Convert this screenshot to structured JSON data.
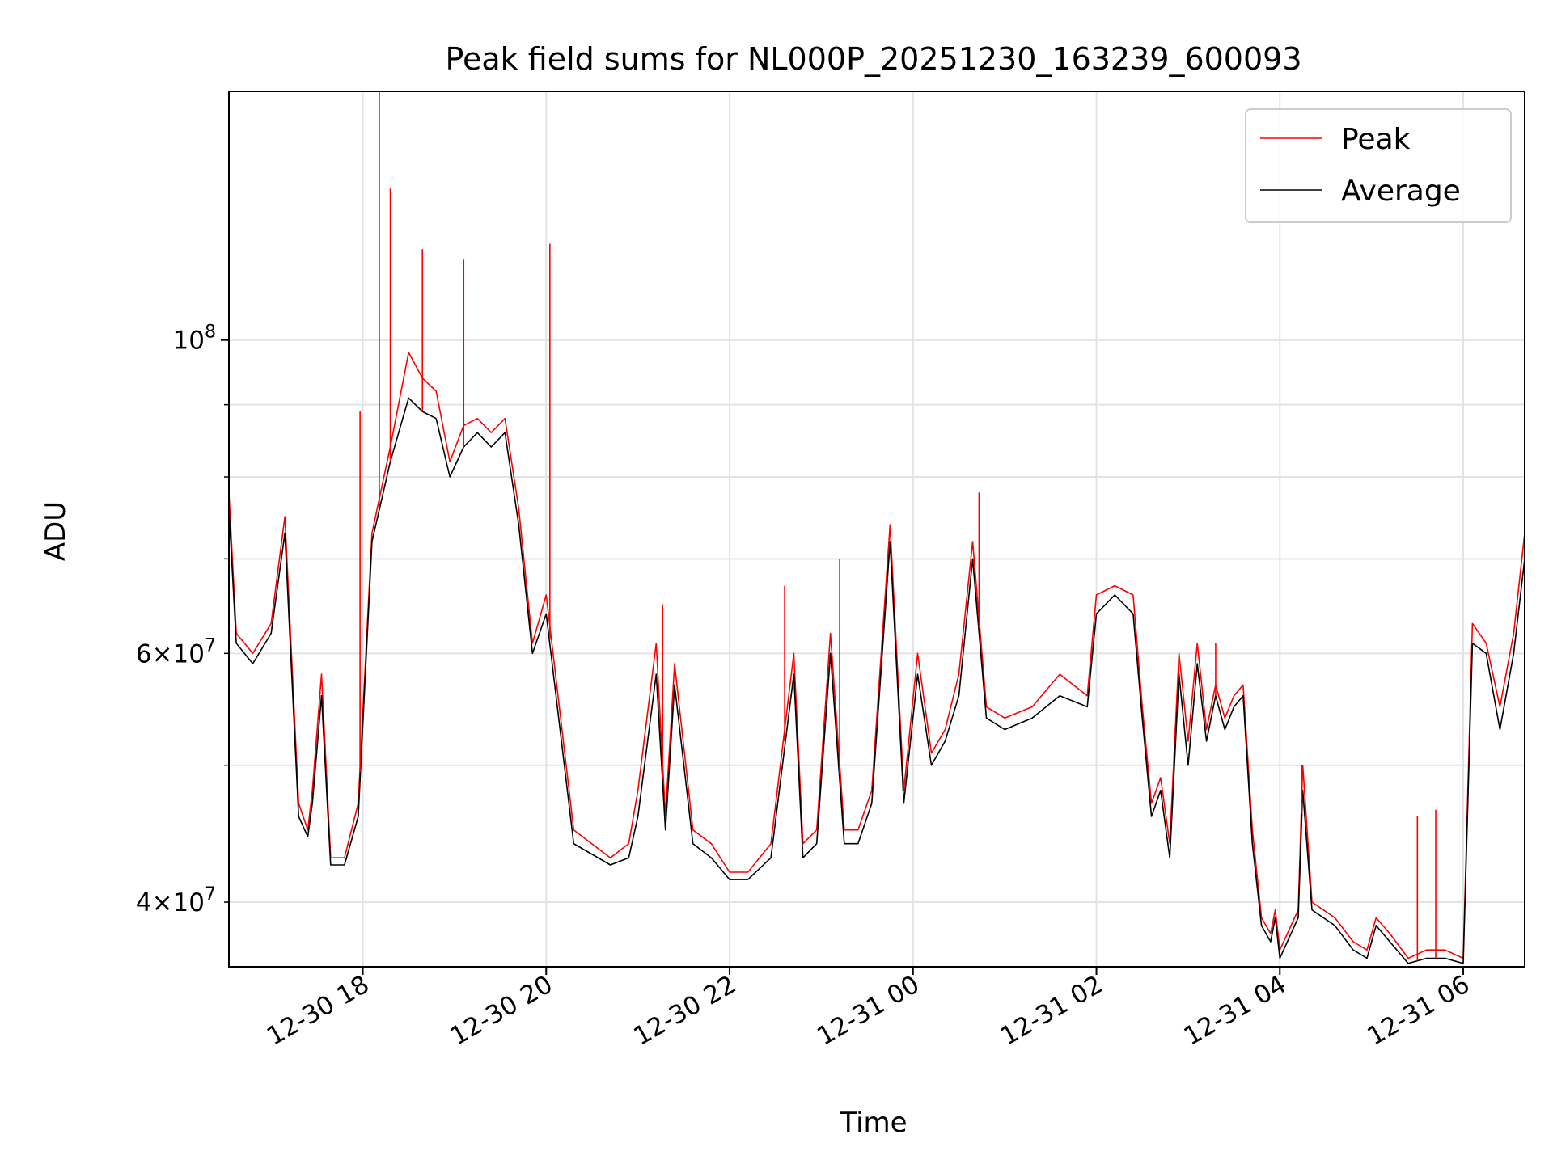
{
  "chart_data": {
    "type": "line",
    "title": "Peak field sums for NL000P_20251230_163239_600093",
    "xlabel": "Time",
    "ylabel": "ADU",
    "yscale": "log",
    "ylim": [
      36000000,
      150000000
    ],
    "xlim_hours": [
      16.54,
      30.67
    ],
    "grid": true,
    "legend_position": "top-right",
    "x_ticks": [
      {
        "label": "12-30 18",
        "hour": 18
      },
      {
        "label": "12-30 20",
        "hour": 20
      },
      {
        "label": "12-30 22",
        "hour": 22
      },
      {
        "label": "12-31 00",
        "hour": 24
      },
      {
        "label": "12-31 02",
        "hour": 26
      },
      {
        "label": "12-31 04",
        "hour": 28
      },
      {
        "label": "12-31 06",
        "hour": 30
      }
    ],
    "y_major_ticks": [
      {
        "value": 100000000,
        "base": "10",
        "exp": "8"
      }
    ],
    "y_minor_labeled_ticks": [
      {
        "value": 40000000,
        "mant": "4",
        "base": "10",
        "exp": "7"
      },
      {
        "value": 60000000,
        "mant": "6",
        "base": "10",
        "exp": "7"
      }
    ],
    "y_minor_grid_values": [
      40000000,
      50000000,
      60000000,
      70000000,
      80000000,
      90000000
    ],
    "series": [
      {
        "name": "Peak",
        "color": "#ff0000",
        "hours": [
          16.54,
          16.62,
          16.8,
          17.0,
          17.15,
          17.3,
          17.4,
          17.45,
          17.55,
          17.65,
          17.8,
          17.95,
          18.1,
          18.3,
          18.5,
          18.65,
          18.8,
          18.95,
          19.1,
          19.25,
          19.4,
          19.55,
          19.7,
          19.85,
          20.0,
          20.3,
          20.7,
          20.9,
          21.0,
          21.2,
          21.3,
          21.4,
          21.6,
          21.8,
          22.0,
          22.2,
          22.45,
          22.7,
          22.8,
          22.95,
          23.1,
          23.25,
          23.4,
          23.55,
          23.75,
          23.9,
          24.05,
          24.2,
          24.35,
          24.5,
          24.65,
          24.8,
          25.0,
          25.3,
          25.6,
          25.9,
          26.0,
          26.2,
          26.4,
          26.5,
          26.6,
          26.7,
          26.8,
          26.9,
          27.0,
          27.1,
          27.2,
          27.3,
          27.4,
          27.5,
          27.6,
          27.7,
          27.8,
          27.9,
          27.95,
          28.0,
          28.2,
          28.25,
          28.35,
          28.6,
          28.8,
          28.95,
          29.05,
          29.2,
          29.4,
          29.6,
          29.8,
          30.0,
          30.1,
          30.25,
          30.4,
          30.55,
          30.67
        ],
        "values": [
          78000000,
          62000000,
          60000000,
          63000000,
          75000000,
          47000000,
          45000000,
          48000000,
          58000000,
          43000000,
          43000000,
          47000000,
          73000000,
          84000000,
          98000000,
          94000000,
          92000000,
          82000000,
          87000000,
          88000000,
          86000000,
          88000000,
          76000000,
          61000000,
          66000000,
          45000000,
          43000000,
          44000000,
          48000000,
          61000000,
          46000000,
          59000000,
          45000000,
          44000000,
          42000000,
          42000000,
          44000000,
          60000000,
          44000000,
          45000000,
          62000000,
          45000000,
          45000000,
          48000000,
          74000000,
          48000000,
          60000000,
          51000000,
          53000000,
          58000000,
          72000000,
          55000000,
          54000000,
          55000000,
          58000000,
          56000000,
          66000000,
          67000000,
          66000000,
          55000000,
          47000000,
          49000000,
          44000000,
          60000000,
          52000000,
          61000000,
          53000000,
          57000000,
          54000000,
          56000000,
          57000000,
          45000000,
          39000000,
          38000000,
          39500000,
          37000000,
          39500000,
          50000000,
          40000000,
          39000000,
          37500000,
          37000000,
          39000000,
          38000000,
          36500000,
          37000000,
          37000000,
          36500000,
          63000000,
          61000000,
          55000000,
          62000000,
          73000000
        ]
      },
      {
        "name": "Average",
        "color": "#000000",
        "hours": [
          16.54,
          16.62,
          16.8,
          17.0,
          17.15,
          17.3,
          17.4,
          17.45,
          17.55,
          17.65,
          17.8,
          17.95,
          18.1,
          18.3,
          18.5,
          18.65,
          18.8,
          18.95,
          19.1,
          19.25,
          19.4,
          19.55,
          19.7,
          19.85,
          20.0,
          20.3,
          20.7,
          20.9,
          21.0,
          21.2,
          21.3,
          21.4,
          21.6,
          21.8,
          22.0,
          22.2,
          22.45,
          22.7,
          22.8,
          22.95,
          23.1,
          23.25,
          23.4,
          23.55,
          23.75,
          23.9,
          24.05,
          24.2,
          24.35,
          24.5,
          24.65,
          24.8,
          25.0,
          25.3,
          25.6,
          25.9,
          26.0,
          26.2,
          26.4,
          26.5,
          26.6,
          26.7,
          26.8,
          26.9,
          27.0,
          27.1,
          27.2,
          27.3,
          27.4,
          27.5,
          27.6,
          27.7,
          27.8,
          27.9,
          27.95,
          28.0,
          28.2,
          28.25,
          28.35,
          28.6,
          28.8,
          28.95,
          29.05,
          29.2,
          29.4,
          29.6,
          29.8,
          30.0,
          30.1,
          30.25,
          30.4,
          30.55,
          30.67
        ],
        "values": [
          76000000,
          61000000,
          59000000,
          62000000,
          73000000,
          46000000,
          44500000,
          47000000,
          56000000,
          42500000,
          42500000,
          46000000,
          72000000,
          82000000,
          91000000,
          89000000,
          88000000,
          80000000,
          84000000,
          86000000,
          84000000,
          86000000,
          74000000,
          60000000,
          64000000,
          44000000,
          42500000,
          43000000,
          46000000,
          58000000,
          45000000,
          57000000,
          44000000,
          43000000,
          41500000,
          41500000,
          43000000,
          58000000,
          43000000,
          44000000,
          60000000,
          44000000,
          44000000,
          47000000,
          72000000,
          47000000,
          58000000,
          50000000,
          52000000,
          56000000,
          70000000,
          54000000,
          53000000,
          54000000,
          56000000,
          55000000,
          64000000,
          66000000,
          64000000,
          54000000,
          46000000,
          48000000,
          43000000,
          58000000,
          50000000,
          59000000,
          52000000,
          56000000,
          53000000,
          55000000,
          56000000,
          44000000,
          38500000,
          37500000,
          39000000,
          36500000,
          39000000,
          48000000,
          39500000,
          38500000,
          37000000,
          36500000,
          38500000,
          37500000,
          36200000,
          36500000,
          36500000,
          36200000,
          61000000,
          60000000,
          53000000,
          60000000,
          70000000
        ]
      }
    ],
    "peak_spikes": [
      {
        "hour": 17.97,
        "value": 89000000
      },
      {
        "hour": 18.18,
        "value": 150000000
      },
      {
        "hour": 18.3,
        "value": 128000000
      },
      {
        "hour": 18.65,
        "value": 116000000
      },
      {
        "hour": 19.1,
        "value": 114000000
      },
      {
        "hour": 20.04,
        "value": 117000000
      },
      {
        "hour": 21.27,
        "value": 65000000
      },
      {
        "hour": 22.6,
        "value": 67000000
      },
      {
        "hour": 23.2,
        "value": 70000000
      },
      {
        "hour": 24.72,
        "value": 78000000
      },
      {
        "hour": 27.3,
        "value": 61000000
      },
      {
        "hour": 28.24,
        "value": 50000000
      },
      {
        "hour": 29.5,
        "value": 46000000
      },
      {
        "hour": 29.7,
        "value": 46500000
      }
    ]
  }
}
